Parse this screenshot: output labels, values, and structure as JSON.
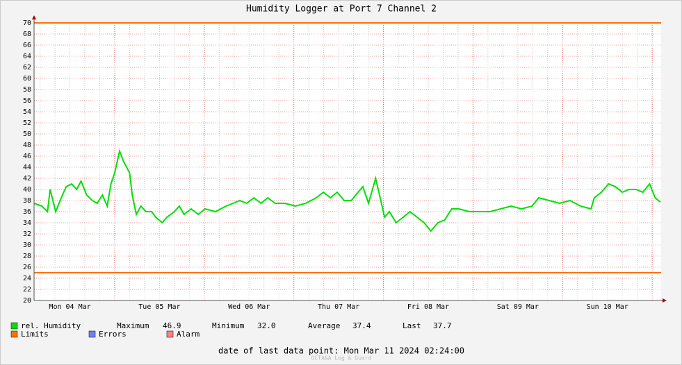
{
  "chart_data": {
    "type": "line",
    "title": "Humidity Logger at Port 7 Channel 2",
    "x": [
      2.4,
      4.5,
      6,
      6.7,
      8.2,
      9.7,
      11,
      12.5,
      13.8,
      15,
      16.5,
      18,
      19.3,
      20.7,
      22,
      23,
      24,
      25.3,
      26.4,
      28,
      28.7,
      29.8,
      31,
      32.4,
      33.9,
      35,
      36.7,
      38,
      40,
      41.3,
      42.6,
      44.5,
      46.4,
      48.2,
      51,
      53.8,
      55.7,
      57.5,
      59.4,
      61.3,
      63.2,
      65,
      67,
      69.6,
      72.4,
      75.2,
      78,
      79.9,
      81.8,
      83.6,
      85.5,
      87.4,
      89.2,
      90.5,
      92,
      93.9,
      95.3,
      96.3,
      97.6,
      99.4,
      101.3,
      103.1,
      105,
      106.9,
      108.7,
      110.6,
      112.4,
      114.3,
      116.2,
      119,
      121.8,
      124.6,
      127.4,
      130.2,
      133,
      135.8,
      137.6,
      140.4,
      143.2,
      146,
      148.8,
      151.6,
      152.5,
      154.4,
      156.3,
      158.1,
      160,
      161.8,
      163.7,
      165.5,
      167.3,
      168.8,
      170.2
    ],
    "series": [
      {
        "name": "rel. Humidity",
        "color": "#00e000",
        "values": [
          37.5,
          37,
          36,
          40,
          36,
          38.5,
          40.5,
          41,
          40,
          41.5,
          39,
          38,
          37.5,
          39,
          37,
          41,
          43,
          46.9,
          45,
          43,
          39,
          35.5,
          37,
          36,
          36,
          35,
          34,
          35,
          36,
          37,
          35.5,
          36.5,
          35.5,
          36.5,
          36,
          37,
          37.5,
          38,
          37.5,
          38.5,
          37.5,
          38.5,
          37.5,
          37.5,
          37,
          37.5,
          38.5,
          39.5,
          38.5,
          39.5,
          38,
          38,
          39.5,
          40.5,
          37.5,
          42,
          38,
          35,
          36,
          34,
          35,
          36,
          35,
          34,
          32.5,
          34,
          34.5,
          36.5,
          36.5,
          36,
          36,
          36,
          36.5,
          37,
          36.5,
          37,
          38.5,
          38,
          37.5,
          38,
          37,
          36.5,
          38.5,
          39.5,
          41,
          40.5,
          39.5,
          40,
          40,
          39.5,
          41,
          38.5,
          37.7
        ]
      }
    ],
    "limits": {
      "name": "Limits",
      "color": "#ff7000",
      "values": [
        70,
        25
      ]
    },
    "legend_extra": [
      {
        "name": "Errors",
        "color": "#7080ff"
      },
      {
        "name": "Alarm",
        "color": "#ff8080"
      }
    ],
    "stats": [
      {
        "name": "Maximum",
        "value": 46.9
      },
      {
        "name": "Minimum",
        "value": {
          "value": 32,
          "label": "32.0"
        }
      },
      {
        "name": "Average",
        "value": 37.4
      },
      {
        "name": "Last",
        "value": 37.7
      }
    ],
    "xlim": [
      2.4,
      170.4
    ],
    "xticks": [
      {
        "value": 12,
        "label": "Mon 04 Mar"
      },
      {
        "value": 36,
        "label": "Tue 05 Mar"
      },
      {
        "value": 60,
        "label": "Wed 06 Mar"
      },
      {
        "value": 84,
        "label": "Thu 07 Mar"
      },
      {
        "value": 108,
        "label": "Fri 08 Mar"
      },
      {
        "value": 132,
        "label": "Sat 09 Mar"
      },
      {
        "value": 156,
        "label": "Sun 10 Mar"
      }
    ],
    "xgrid_major_step": 24,
    "xgrid_minor_step": 4,
    "ylim": [
      20,
      70
    ],
    "yticks": [
      20,
      22,
      24,
      26,
      28,
      30,
      32,
      34,
      36,
      38,
      40,
      42,
      44,
      46,
      48,
      50,
      52,
      54,
      56,
      58,
      60,
      62,
      64,
      66,
      68,
      70
    ],
    "grid": true,
    "footer": "date of last data point:  Mon Mar 11 2024 02:24:00",
    "watermark": "OCTA&A Log & Guard"
  }
}
